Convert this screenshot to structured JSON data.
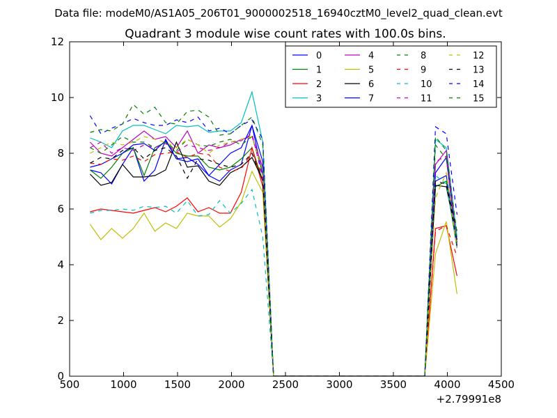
{
  "chart_data": {
    "type": "line",
    "suptitle": "Data file: modeM0/AS1A05_206T01_9000002518_16940cztM0_level2_quad_clean.evt",
    "title": "Quadrant 3 module wise count rates with 100.0s bins.",
    "xlabel": "",
    "ylabel": "",
    "x_offset_label": "+2.79991e8",
    "xlim": [
      500,
      4500
    ],
    "ylim": [
      0,
      12
    ],
    "xticks": [
      500,
      1000,
      1500,
      2000,
      2500,
      3000,
      3500,
      4000,
      4500
    ],
    "yticks": [
      0,
      2,
      4,
      6,
      8,
      10,
      12
    ],
    "legend_position": "top-right",
    "legend_columns": 4,
    "x": [
      690,
      790,
      890,
      990,
      1090,
      1190,
      1290,
      1390,
      1490,
      1590,
      1690,
      1790,
      1890,
      1990,
      2090,
      2190,
      2290,
      2390,
      2490,
      2590,
      2690,
      2790,
      2890,
      2990,
      3090,
      3190,
      3290,
      3390,
      3490,
      3590,
      3690,
      3790,
      3890,
      3990,
      4090
    ],
    "series": [
      {
        "name": "0",
        "color": "#0000ff",
        "dash": "solid",
        "values": [
          7.4,
          7.3,
          6.9,
          7.6,
          8.2,
          7.0,
          7.4,
          8.5,
          7.8,
          7.7,
          7.8,
          7.2,
          7.0,
          7.4,
          7.6,
          9.0,
          7.2,
          0,
          0,
          0,
          0,
          0,
          0,
          0,
          0,
          0,
          0,
          0,
          0,
          0,
          0,
          0,
          7.0,
          7.2,
          4.8
        ]
      },
      {
        "name": "1",
        "color": "#008000",
        "dash": "solid",
        "values": [
          7.4,
          7.1,
          7.5,
          8.0,
          8.2,
          7.2,
          8.2,
          8.4,
          8.0,
          7.9,
          7.9,
          7.5,
          7.4,
          7.5,
          7.8,
          8.2,
          7.0,
          0,
          0,
          0,
          0,
          0,
          0,
          0,
          0,
          0,
          0,
          0,
          0,
          0,
          0,
          0,
          6.8,
          7.0,
          4.6
        ]
      },
      {
        "name": "2",
        "color": "#ff0000",
        "dash": "solid",
        "values": [
          5.9,
          6.0,
          5.95,
          5.9,
          5.85,
          5.95,
          6.05,
          5.9,
          6.1,
          6.4,
          5.9,
          6.05,
          5.85,
          5.85,
          6.6,
          8.2,
          6.8,
          0,
          0,
          0,
          0,
          0,
          0,
          0,
          0,
          0,
          0,
          0,
          0,
          0,
          0,
          0,
          5.3,
          5.4,
          3.6
        ]
      },
      {
        "name": "3",
        "color": "#00bfbf",
        "dash": "solid",
        "values": [
          8.55,
          8.4,
          8.2,
          8.8,
          9.0,
          9.0,
          8.85,
          8.7,
          9.0,
          8.95,
          9.0,
          8.75,
          8.8,
          8.8,
          9.1,
          10.2,
          8.4,
          0,
          0,
          0,
          0,
          0,
          0,
          0,
          0,
          0,
          0,
          0,
          0,
          0,
          0,
          0,
          8.5,
          8.2,
          5.0
        ]
      },
      {
        "name": "4",
        "color": "#bf00bf",
        "dash": "solid",
        "values": [
          8.4,
          8.0,
          7.9,
          8.2,
          8.5,
          8.8,
          8.5,
          8.6,
          8.2,
          8.8,
          8.0,
          8.3,
          8.2,
          8.3,
          8.5,
          8.6,
          7.5,
          0,
          0,
          0,
          0,
          0,
          0,
          0,
          0,
          0,
          0,
          0,
          0,
          0,
          0,
          0,
          7.6,
          8.1,
          4.7
        ]
      },
      {
        "name": "5",
        "color": "#bfbf00",
        "dash": "solid",
        "values": [
          5.45,
          4.9,
          5.3,
          4.95,
          5.3,
          5.85,
          5.2,
          5.5,
          5.3,
          5.85,
          5.75,
          5.75,
          5.35,
          5.65,
          6.25,
          7.35,
          6.6,
          0,
          0,
          0,
          0,
          0,
          0,
          0,
          0,
          0,
          0,
          0,
          0,
          0,
          0,
          0,
          4.4,
          5.55,
          2.95
        ]
      },
      {
        "name": "6",
        "color": "#000000",
        "dash": "solid",
        "values": [
          7.25,
          6.85,
          6.95,
          7.6,
          7.15,
          7.15,
          7.2,
          7.4,
          8.4,
          7.5,
          7.55,
          7.0,
          6.85,
          7.3,
          7.5,
          7.85,
          7.05,
          0,
          0,
          0,
          0,
          0,
          0,
          0,
          0,
          0,
          0,
          0,
          0,
          0,
          0,
          0,
          6.85,
          6.8,
          4.9
        ]
      },
      {
        "name": "7",
        "color": "#0000ff",
        "dash": "solid",
        "values": [
          7.5,
          7.6,
          7.8,
          8.0,
          8.3,
          8.35,
          8.1,
          8.45,
          7.8,
          7.85,
          7.6,
          7.2,
          7.6,
          8.0,
          8.2,
          9.0,
          7.7,
          0,
          0,
          0,
          0,
          0,
          0,
          0,
          0,
          0,
          0,
          0,
          0,
          0,
          0,
          0,
          7.3,
          7.85,
          4.65
        ]
      },
      {
        "name": "8",
        "color": "#008000",
        "dash": "dashed",
        "values": [
          8.2,
          8.0,
          8.3,
          8.6,
          8.4,
          8.4,
          8.2,
          8.4,
          8.1,
          8.5,
          8.3,
          8.25,
          8.4,
          8.5,
          8.3,
          8.6,
          7.3,
          0,
          0,
          0,
          0,
          0,
          0,
          0,
          0,
          0,
          0,
          0,
          0,
          0,
          0,
          0,
          8.3,
          7.8,
          4.7
        ]
      },
      {
        "name": "9",
        "color": "#ff0000",
        "dash": "dashed",
        "values": [
          7.65,
          7.6,
          7.8,
          7.75,
          7.9,
          7.7,
          7.95,
          8.0,
          8.05,
          7.85,
          8.0,
          7.95,
          7.5,
          7.35,
          7.45,
          8.0,
          7.2,
          0,
          0,
          0,
          0,
          0,
          0,
          0,
          0,
          0,
          0,
          0,
          0,
          0,
          0,
          0,
          5.2,
          5.4,
          4.3
        ]
      },
      {
        "name": "10",
        "color": "#00bfbf",
        "dash": "dashed",
        "values": [
          5.85,
          5.95,
          5.95,
          6.0,
          5.95,
          6.1,
          6.05,
          6.1,
          5.85,
          6.3,
          5.75,
          5.8,
          6.3,
          5.85,
          6.2,
          6.7,
          5.0,
          0,
          0,
          0,
          0,
          0,
          0,
          0,
          0,
          0,
          0,
          0,
          0,
          0,
          0,
          0,
          7.2,
          6.9,
          4.6
        ]
      },
      {
        "name": "11",
        "color": "#bf00bf",
        "dash": "dashed",
        "values": [
          8.2,
          8.4,
          8.0,
          8.2,
          8.1,
          8.3,
          8.2,
          8.35,
          8.05,
          8.3,
          8.2,
          8.1,
          8.2,
          8.4,
          8.45,
          8.7,
          7.1,
          0,
          0,
          0,
          0,
          0,
          0,
          0,
          0,
          0,
          0,
          0,
          0,
          0,
          0,
          0,
          7.7,
          7.9,
          4.6
        ]
      },
      {
        "name": "12",
        "color": "#bfbf00",
        "dash": "dashed",
        "values": [
          8.0,
          8.2,
          8.4,
          8.3,
          8.4,
          8.6,
          8.5,
          8.4,
          8.2,
          8.5,
          8.3,
          8.0,
          8.3,
          8.4,
          8.5,
          8.6,
          7.4,
          0,
          0,
          0,
          0,
          0,
          0,
          0,
          0,
          0,
          0,
          0,
          0,
          0,
          0,
          0,
          6.4,
          7.3,
          4.6
        ]
      },
      {
        "name": "13",
        "color": "#000000",
        "dash": "dashed",
        "values": [
          7.65,
          7.85,
          7.8,
          8.1,
          8.2,
          7.8,
          8.1,
          8.2,
          7.9,
          7.1,
          7.8,
          7.75,
          7.6,
          7.5,
          7.6,
          8.0,
          7.0,
          0,
          0,
          0,
          0,
          0,
          0,
          0,
          0,
          0,
          0,
          0,
          0,
          0,
          0,
          0,
          7.0,
          6.9,
          5.2
        ]
      },
      {
        "name": "14",
        "color": "#0000ff",
        "dash": "dashed",
        "values": [
          9.35,
          8.7,
          8.9,
          9.05,
          9.25,
          9.1,
          9.0,
          9.0,
          9.2,
          9.1,
          9.3,
          8.8,
          8.9,
          8.7,
          9.0,
          9.2,
          8.5,
          0,
          0,
          0,
          0,
          0,
          0,
          0,
          0,
          0,
          0,
          0,
          0,
          0,
          0,
          0,
          8.95,
          8.7,
          5.8
        ]
      },
      {
        "name": "15",
        "color": "#008000",
        "dash": "dashed",
        "values": [
          8.75,
          8.85,
          8.8,
          9.05,
          9.75,
          9.4,
          9.65,
          9.1,
          9.05,
          9.5,
          9.55,
          9.3,
          8.65,
          8.7,
          9.0,
          9.3,
          8.3,
          0,
          0,
          0,
          0,
          0,
          0,
          0,
          0,
          0,
          0,
          0,
          0,
          0,
          0,
          0,
          8.6,
          8.1,
          5.1
        ]
      }
    ]
  }
}
